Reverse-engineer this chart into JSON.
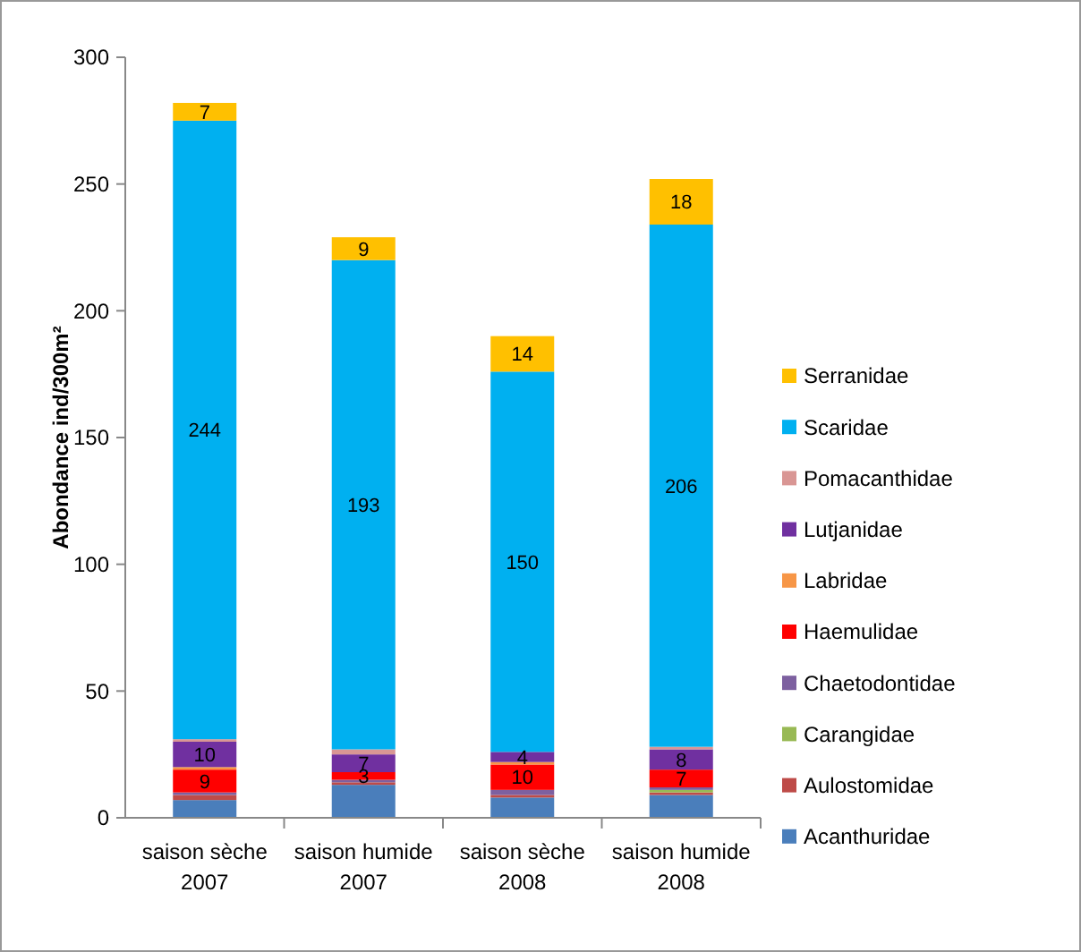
{
  "chart_data": {
    "type": "bar",
    "stacked": true,
    "ylabel": "Abondance ind/300m²",
    "categories": [
      "saison sèche 2007",
      "saison humide 2007",
      "saison sèche 2008",
      "saison humide 2008"
    ],
    "ylim": [
      0,
      300
    ],
    "yticks": [
      0,
      50,
      100,
      150,
      200,
      250,
      300
    ],
    "grid": false,
    "legend": "right",
    "series": [
      {
        "name": "Acanthuridae",
        "color": "#4a7ebb",
        "values": [
          7,
          13,
          8,
          9
        ]
      },
      {
        "name": "Aulostomidae",
        "color": "#be4b48",
        "values": [
          2,
          1,
          1,
          1
        ]
      },
      {
        "name": "Carangidae",
        "color": "#98b954",
        "values": [
          0,
          0,
          0,
          1
        ]
      },
      {
        "name": "Chaetodontidae",
        "color": "#7d60a0",
        "values": [
          1,
          1,
          2,
          1
        ]
      },
      {
        "name": "Haemulidae",
        "color": "#ff0000",
        "values": [
          9,
          3,
          10,
          7
        ],
        "value_labels": [
          "9",
          "3",
          "10",
          "7"
        ]
      },
      {
        "name": "Labridae",
        "color": "#f79646",
        "values": [
          1,
          0,
          1,
          0
        ]
      },
      {
        "name": "Lutjanidae",
        "color": "#7030a0",
        "values": [
          10,
          7,
          4,
          8
        ],
        "value_labels": [
          "10",
          "7",
          "4",
          "8"
        ]
      },
      {
        "name": "Pomacanthidae",
        "color": "#d99694",
        "values": [
          1,
          2,
          0,
          1
        ]
      },
      {
        "name": "Scaridae",
        "color": "#00b0f0",
        "values": [
          244,
          193,
          150,
          206
        ],
        "value_labels": [
          "244",
          "193",
          "150",
          "206"
        ]
      },
      {
        "name": "Serranidae",
        "color": "#ffc000",
        "values": [
          7,
          9,
          14,
          18
        ],
        "value_labels": [
          "7",
          "9",
          "14",
          "18"
        ]
      }
    ]
  }
}
